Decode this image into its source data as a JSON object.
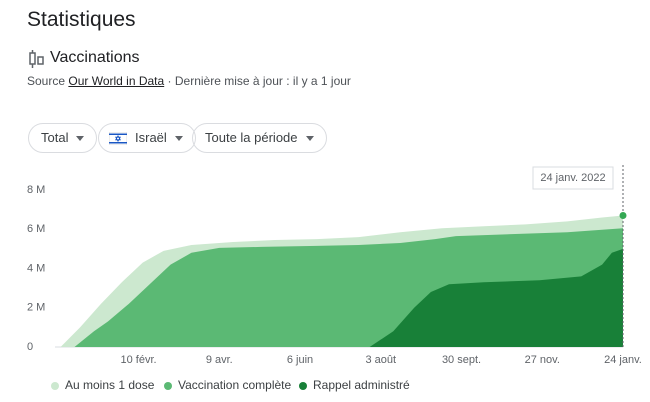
{
  "header": {
    "title": "Statistiques",
    "section": "Vaccinations",
    "source_prefix": "Source",
    "source_link": "Our World in Data",
    "updated": "· Dernière mise à jour : il y a 1 jour"
  },
  "filters": [
    "Total",
    "Israël",
    "Toute la période"
  ],
  "chart_data": {
    "type": "area",
    "tooltip": "24 janv. 2022",
    "xlim": [
      -8,
      400
    ],
    "xticks": [
      {
        "value": 52,
        "label": "10 févr."
      },
      {
        "value": 110,
        "label": "9 avr."
      },
      {
        "value": 168,
        "label": "6 juin"
      },
      {
        "value": 226,
        "label": "3 août"
      },
      {
        "value": 284,
        "label": "30 sept."
      },
      {
        "value": 342,
        "label": "27 nov."
      },
      {
        "value": 400,
        "label": "24 janv."
      }
    ],
    "ylim": [
      0,
      8
    ],
    "yticks": [
      0,
      {
        "value": 2,
        "label": "2 M"
      },
      {
        "value": 4,
        "label": "4 M"
      },
      {
        "value": 6,
        "label": "6 M"
      },
      {
        "value": 8,
        "label": "8 M"
      }
    ],
    "grid": false,
    "series": [
      {
        "name": "Au moins 1 dose",
        "color": "#cce8cf",
        "x": [
          -4,
          10,
          25,
          40,
          55,
          70,
          90,
          120,
          150,
          180,
          210,
          240,
          270,
          300,
          330,
          360,
          385,
          400
        ],
        "values": [
          0,
          1.0,
          2.2,
          3.3,
          4.3,
          4.9,
          5.2,
          5.35,
          5.45,
          5.5,
          5.6,
          5.85,
          6.05,
          6.15,
          6.25,
          6.4,
          6.6,
          6.7
        ]
      },
      {
        "name": "Vaccination complète",
        "color": "#5bb974",
        "x": [
          6,
          20,
          30,
          45,
          60,
          75,
          90,
          110,
          140,
          180,
          210,
          240,
          265,
          280,
          320,
          360,
          400
        ],
        "values": [
          0,
          0.8,
          1.3,
          2.2,
          3.2,
          4.2,
          4.8,
          5.05,
          5.1,
          5.15,
          5.2,
          5.3,
          5.5,
          5.65,
          5.75,
          5.85,
          6.05
        ]
      },
      {
        "name": "Rappel administré",
        "color": "#188038",
        "x": [
          218,
          235,
          250,
          262,
          275,
          300,
          340,
          370,
          385,
          392,
          400
        ],
        "values": [
          0,
          0.8,
          2.0,
          2.8,
          3.2,
          3.3,
          3.4,
          3.6,
          4.2,
          4.8,
          5.0
        ]
      }
    ]
  }
}
